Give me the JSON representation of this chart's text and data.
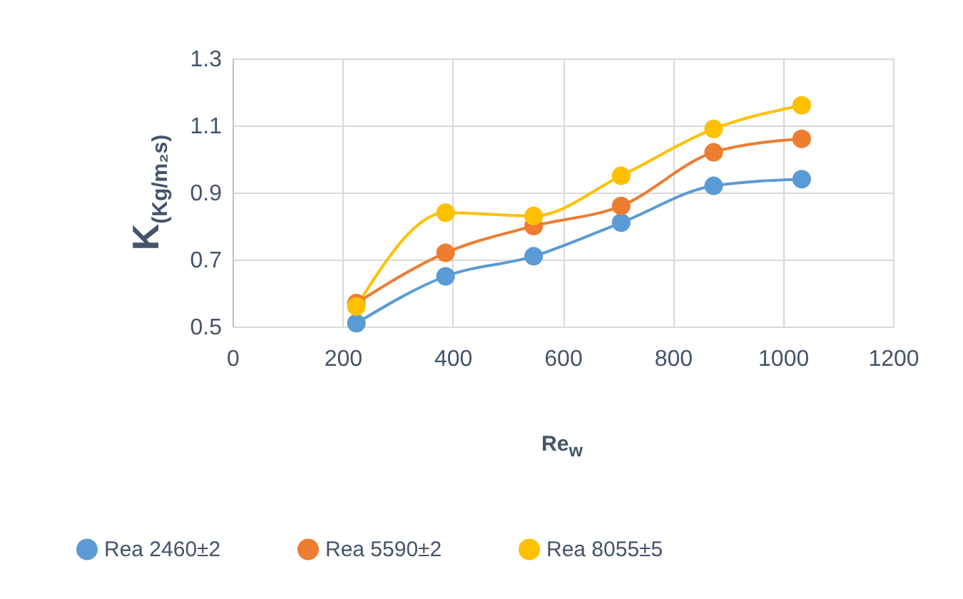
{
  "chart_data": {
    "type": "line",
    "xlabel": "Re$_{w}$",
    "ylabel": "K$_{(Kg/m₂s)}$",
    "x": [
      225,
      387,
      547,
      706,
      874,
      1034
    ],
    "series": [
      {
        "name": "Rea 2460±2",
        "color": "#5b9bd5",
        "values": [
          0.51,
          0.65,
          0.71,
          0.81,
          0.92,
          0.94
        ]
      },
      {
        "name": "Rea 5590±2",
        "color": "#ed7d31",
        "values": [
          0.57,
          0.72,
          0.8,
          0.86,
          1.02,
          1.06
        ]
      },
      {
        "name": "Rea 8055±5",
        "color": "#ffc000",
        "values": [
          0.56,
          0.84,
          0.83,
          0.95,
          1.09,
          1.16
        ]
      }
    ],
    "xlim": [
      0,
      1200
    ],
    "xticks": [
      0,
      200,
      400,
      600,
      800,
      1000,
      1200
    ],
    "ylim": [
      0.5,
      1.3
    ],
    "yticks": [
      0.5,
      0.7,
      0.9,
      1.1,
      1.3
    ],
    "grid": true,
    "legend": "bottom",
    "marker": "circle",
    "line_style": "solid"
  }
}
